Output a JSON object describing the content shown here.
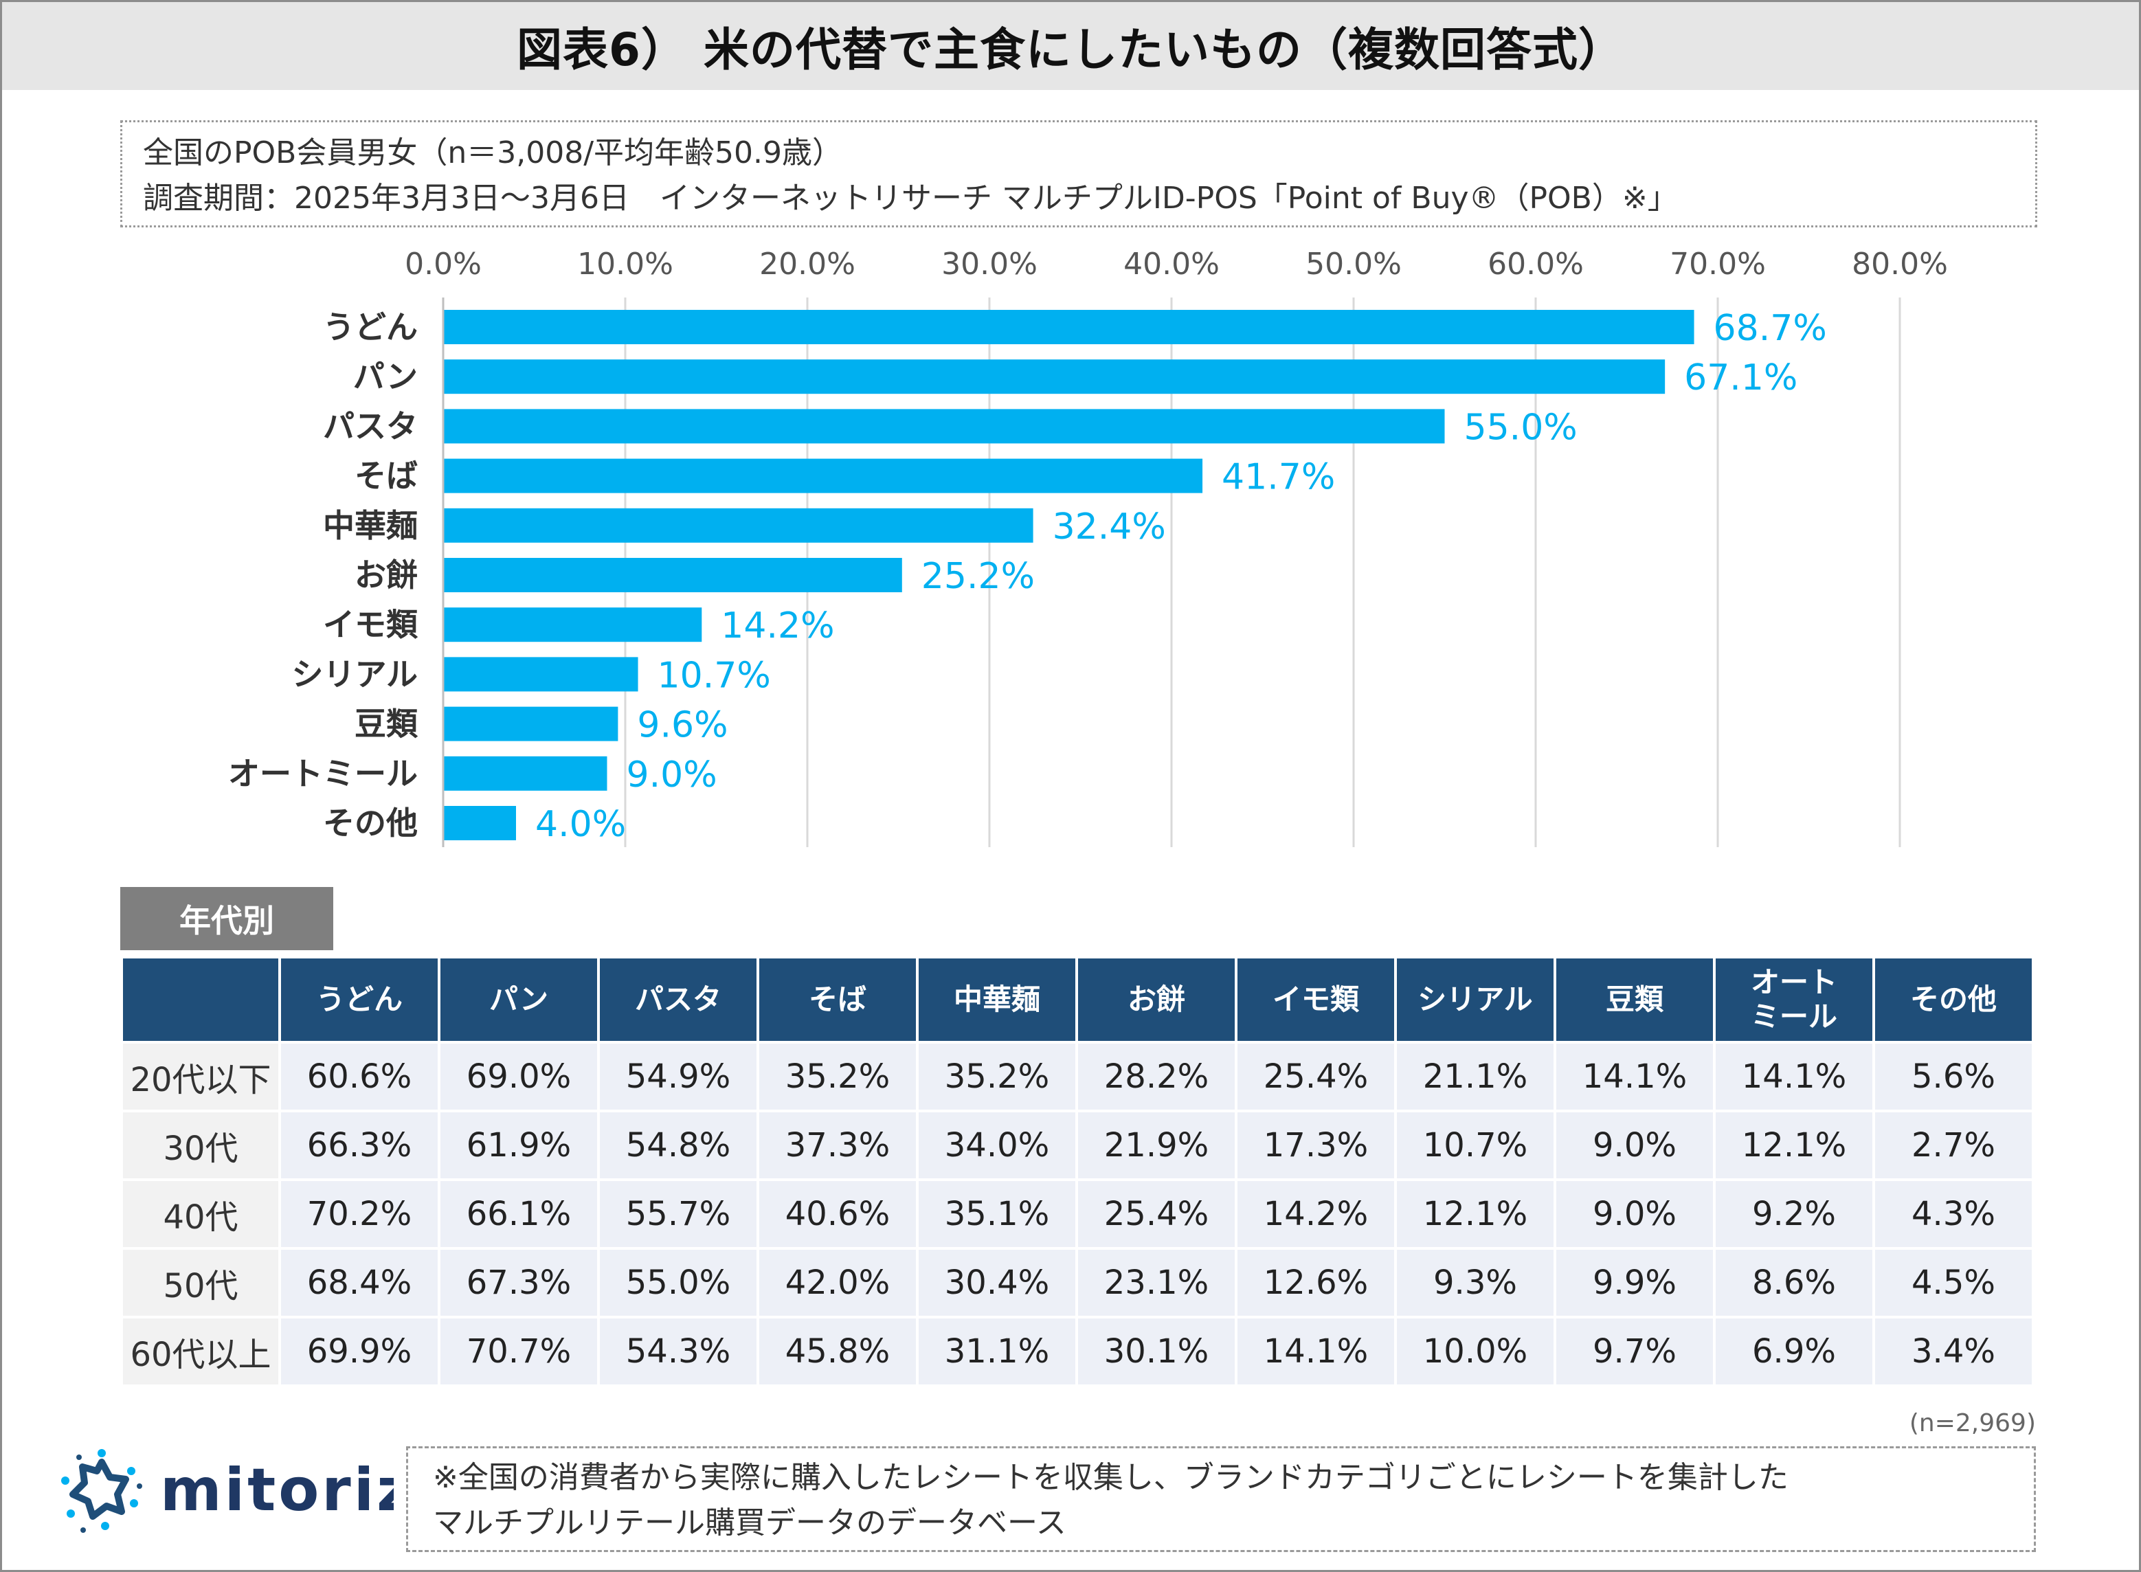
{
  "title": "図表6） 米の代替で主食にしたいもの（複数回答式）",
  "survey": {
    "line1": "全国のPOB会員男女（n＝3,008/平均年齢50.9歳）",
    "line2": "調査期間：2025年3月3日〜3月6日　インターネットリサーチ マルチプルID-POS「Point of Buy®（POB）※」"
  },
  "colors": {
    "bar": "#00b0f0",
    "table_header": "#1f4e79",
    "age_label_bg": "#7f7f7f"
  },
  "chart_data": {
    "type": "bar",
    "orientation": "horizontal",
    "categories": [
      "うどん",
      "パン",
      "パスタ",
      "そば",
      "中華麺",
      "お餅",
      "イモ類",
      "シリアル",
      "豆類",
      "オートミール",
      "その他"
    ],
    "values": [
      68.7,
      67.1,
      55.0,
      41.7,
      32.4,
      25.2,
      14.2,
      10.7,
      9.6,
      9.0,
      4.0
    ],
    "value_labels": [
      "68.7%",
      "67.1%",
      "55.0%",
      "41.7%",
      "32.4%",
      "25.2%",
      "14.2%",
      "10.7%",
      "9.6%",
      "9.0%",
      "4.0%"
    ],
    "xlim": [
      0,
      80
    ],
    "x_ticks": [
      0,
      10,
      20,
      30,
      40,
      50,
      60,
      70,
      80
    ],
    "x_tick_labels": [
      "0.0%",
      "10.0%",
      "20.0%",
      "30.0%",
      "40.0%",
      "50.0%",
      "60.0%",
      "70.0%",
      "80.0%"
    ],
    "x_axis_position": "top",
    "grid": true,
    "title": "",
    "xlabel": "",
    "ylabel": ""
  },
  "age_table": {
    "label": "年代別",
    "corner": "",
    "headers": [
      "うどん",
      "パン",
      "パスタ",
      "そば",
      "中華麺",
      "お餅",
      "イモ類",
      "シリアル",
      "豆類",
      "オート\nミール",
      "その他"
    ],
    "rows": [
      {
        "label": "20代以下",
        "cells": [
          "60.6%",
          "69.0%",
          "54.9%",
          "35.2%",
          "35.2%",
          "28.2%",
          "25.4%",
          "21.1%",
          "14.1%",
          "14.1%",
          "5.6%"
        ]
      },
      {
        "label": "30代",
        "cells": [
          "66.3%",
          "61.9%",
          "54.8%",
          "37.3%",
          "34.0%",
          "21.9%",
          "17.3%",
          "10.7%",
          "9.0%",
          "12.1%",
          "2.7%"
        ]
      },
      {
        "label": "40代",
        "cells": [
          "70.2%",
          "66.1%",
          "55.7%",
          "40.6%",
          "35.1%",
          "25.4%",
          "14.2%",
          "12.1%",
          "9.0%",
          "9.2%",
          "4.3%"
        ]
      },
      {
        "label": "50代",
        "cells": [
          "68.4%",
          "67.3%",
          "55.0%",
          "42.0%",
          "30.4%",
          "23.1%",
          "12.6%",
          "9.3%",
          "9.9%",
          "8.6%",
          "4.5%"
        ]
      },
      {
        "label": "60代以上",
        "cells": [
          "69.9%",
          "70.7%",
          "54.3%",
          "45.8%",
          "31.1%",
          "30.1%",
          "14.1%",
          "10.0%",
          "9.7%",
          "6.9%",
          "3.4%"
        ]
      }
    ],
    "sample_note": "(n=2,969)"
  },
  "logo": {
    "text": "mitoriz",
    "icon": "mitoriz-logo-icon"
  },
  "footnote": {
    "line1": "※全国の消費者から実際に購入したレシートを収集し、ブランドカテゴリごとにレシートを集計した",
    "line2": "マルチプルリテール購買データのデータベース"
  }
}
